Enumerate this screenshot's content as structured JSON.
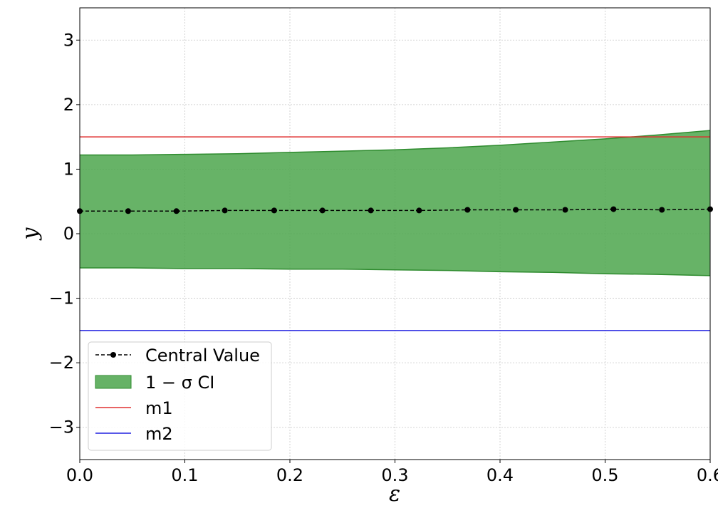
{
  "chart_data": {
    "type": "line",
    "xlabel": "ε",
    "ylabel": "y",
    "xlim": [
      0.0,
      0.6
    ],
    "ylim": [
      -3.5,
      3.5
    ],
    "xticks": [
      "0.0",
      "0.1",
      "0.2",
      "0.3",
      "0.4",
      "0.5",
      "0.6"
    ],
    "yticks": [
      "−3",
      "−2",
      "−1",
      "0",
      "1",
      "2",
      "3"
    ],
    "grid": true,
    "legend_position": "lower-left",
    "series": [
      {
        "name": "Central Value",
        "kind": "line-markers",
        "style": "dashed",
        "color": "#000000",
        "x": [
          0.0,
          0.046,
          0.092,
          0.138,
          0.185,
          0.231,
          0.277,
          0.323,
          0.369,
          0.415,
          0.462,
          0.508,
          0.554,
          0.6
        ],
        "y": [
          0.35,
          0.35,
          0.35,
          0.36,
          0.36,
          0.36,
          0.36,
          0.36,
          0.37,
          0.37,
          0.37,
          0.38,
          0.37,
          0.38
        ]
      },
      {
        "name": "1 − σ CI",
        "kind": "band",
        "color": "#4ca64c",
        "edge_color": "#2e8b2e",
        "x": [
          0.0,
          0.05,
          0.1,
          0.15,
          0.2,
          0.25,
          0.3,
          0.35,
          0.4,
          0.45,
          0.5,
          0.55,
          0.6
        ],
        "upper": [
          1.22,
          1.22,
          1.23,
          1.24,
          1.26,
          1.28,
          1.3,
          1.33,
          1.37,
          1.42,
          1.47,
          1.53,
          1.6
        ],
        "lower": [
          -0.53,
          -0.53,
          -0.54,
          -0.54,
          -0.55,
          -0.55,
          -0.56,
          -0.57,
          -0.59,
          -0.6,
          -0.62,
          -0.63,
          -0.65
        ]
      },
      {
        "name": "m1",
        "kind": "hline",
        "color": "#e03030",
        "y": 1.5
      },
      {
        "name": "m2",
        "kind": "hline",
        "color": "#2020e0",
        "y": -1.5
      }
    ]
  }
}
